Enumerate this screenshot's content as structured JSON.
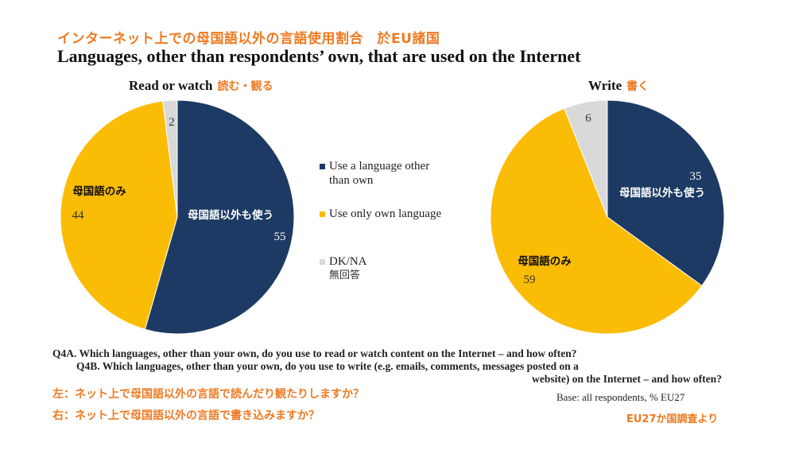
{
  "title_jp": "インターネット上での母国語以外の言語使用割合　於EU諸国",
  "title_en": "Languages, other than respondents’ own, that are used on the Internet",
  "legend": [
    {
      "label": "Use a language other than own",
      "label_line1": "Use a language other",
      "label_line2": "than own",
      "color": "#1c3a63"
    },
    {
      "label": "Use only own language",
      "color": "#fbbc05"
    },
    {
      "label": "DK/NA",
      "label_jp": "無回答",
      "color": "#d9d9d9"
    }
  ],
  "chart_data": [
    {
      "type": "pie",
      "title": "Read or watch",
      "title_jp": "読む・観る",
      "slices": [
        {
          "name": "Use a language other than own",
          "value": 55,
          "label": "55",
          "label_jp": "母国語以外も使う",
          "color": "#1c3a63"
        },
        {
          "name": "Use only own language",
          "value": 44,
          "label": "44",
          "label_jp": "母国語のみ",
          "color": "#fbbc05"
        },
        {
          "name": "DK/NA",
          "value": 2,
          "label": "2",
          "color": "#d9d9d9"
        }
      ]
    },
    {
      "type": "pie",
      "title": "Write",
      "title_jp": "書く",
      "slices": [
        {
          "name": "Use a language other than own",
          "value": 35,
          "label": "35",
          "label_jp": "母国語以外も使う",
          "color": "#1c3a63"
        },
        {
          "name": "Use only own language",
          "value": 59,
          "label": "59",
          "label_jp": "母国語のみ",
          "color": "#fbbc05"
        },
        {
          "name": "DK/NA",
          "value": 6,
          "label": "6",
          "color": "#d9d9d9"
        }
      ]
    }
  ],
  "questions": {
    "q4a": "Q4A. Which languages, other than your own, do you use to read or watch content on the Internet – and how often?",
    "q4b_line1": "Q4B. Which languages, other than your own, do you use to write (e.g. emails, comments, messages posted on a",
    "q4b_line2": "website) on the Internet – and how often?",
    "base": "Base: all respondents, % EU27"
  },
  "footnotes": {
    "left": "左：ネット上で母国語以外の言語で読んだり観たりしますか？",
    "right": "右：ネット上で母国語以外の言語で書き込みますか？",
    "source": "EU27か国調査より"
  }
}
